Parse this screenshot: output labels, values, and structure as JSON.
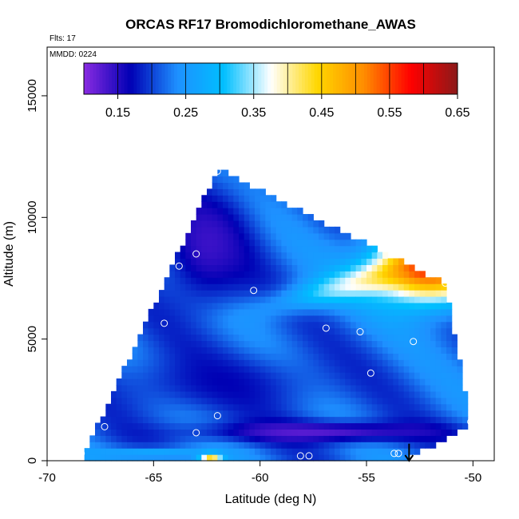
{
  "chart_data": {
    "type": "heatmap",
    "title": "ORCAS RF17 Bromodichloromethane_AWAS",
    "flights_label": "Flts: 17",
    "date_label": "MMDD: 0224",
    "xlabel": "Latitude (deg N)",
    "ylabel": "Altitude (m)",
    "xlim": [
      -70,
      -49
    ],
    "ylim": [
      0,
      17000
    ],
    "x_ticks": [
      -70,
      -65,
      -60,
      -55,
      -50
    ],
    "x_tick_labels": [
      "-70",
      "-65",
      "-60",
      "-55",
      "-50"
    ],
    "y_ticks": [
      0,
      5000,
      10000,
      15000
    ],
    "y_tick_labels": [
      "0",
      "5000",
      "10000",
      "15000"
    ],
    "colorbar": {
      "min": 0.1,
      "max": 0.65,
      "ticks": [
        0.15,
        0.25,
        0.35,
        0.45,
        0.55,
        0.65
      ],
      "tick_labels": [
        "0.15",
        "0.25",
        "0.35",
        "0.45",
        "0.55",
        "0.65"
      ],
      "colors": [
        "#8a2be2",
        "#0000b4",
        "#1e90ff",
        "#00bfff",
        "#ffffff",
        "#ffd700",
        "#ff8c00",
        "#ff0000",
        "#8b1a1a"
      ]
    },
    "domain_outline": [
      [
        -68.4,
        0
      ],
      [
        -62.0,
        12000
      ],
      [
        -51.3,
        7300
      ],
      [
        -50.1,
        1500
      ],
      [
        -53.2,
        0
      ]
    ],
    "field_features": [
      {
        "name": "background",
        "value": 0.22
      },
      {
        "name": "low upper-left",
        "value": 0.13,
        "center": [
          -62.5,
          8800
        ]
      },
      {
        "name": "upper-right warm",
        "value": 0.58,
        "center": [
          -52.0,
          8000
        ]
      },
      {
        "name": "mid warm tongue",
        "value": 0.4,
        "center": [
          -56.0,
          7000
        ]
      },
      {
        "name": "lower-left band",
        "value": 0.16,
        "center": [
          -62.0,
          3200
        ]
      },
      {
        "name": "surface purple band",
        "value": 0.11,
        "center": [
          -57.0,
          1200
        ]
      },
      {
        "name": "surface light band",
        "value": 0.3,
        "center": [
          -65.0,
          300
        ]
      },
      {
        "name": "surface yellow spot",
        "value": 0.45,
        "center": [
          -62.3,
          100
        ]
      }
    ],
    "samples": [
      {
        "lat": -62.0,
        "alt": 11900
      },
      {
        "lat": -63.0,
        "alt": 8500
      },
      {
        "lat": -63.8,
        "alt": 8000
      },
      {
        "lat": -65.0,
        "alt": 6850
      },
      {
        "lat": -60.3,
        "alt": 7000
      },
      {
        "lat": -51.3,
        "alt": 7300
      },
      {
        "lat": -64.5,
        "alt": 5650
      },
      {
        "lat": -56.9,
        "alt": 5450
      },
      {
        "lat": -55.3,
        "alt": 5300
      },
      {
        "lat": -52.8,
        "alt": 4900
      },
      {
        "lat": -54.8,
        "alt": 3600
      },
      {
        "lat": -67.6,
        "alt": 2550
      },
      {
        "lat": -62.0,
        "alt": 1850
      },
      {
        "lat": -67.3,
        "alt": 1400
      },
      {
        "lat": -63.0,
        "alt": 1150
      },
      {
        "lat": -50.1,
        "alt": 1600
      },
      {
        "lat": -68.4,
        "alt": 300
      },
      {
        "lat": -58.1,
        "alt": 200
      },
      {
        "lat": -57.7,
        "alt": 200
      },
      {
        "lat": -53.7,
        "alt": 300
      },
      {
        "lat": -53.5,
        "alt": 300
      }
    ],
    "direction_arrow": {
      "lat": -53.0,
      "alt_from": 700,
      "alt_to": 0
    }
  }
}
